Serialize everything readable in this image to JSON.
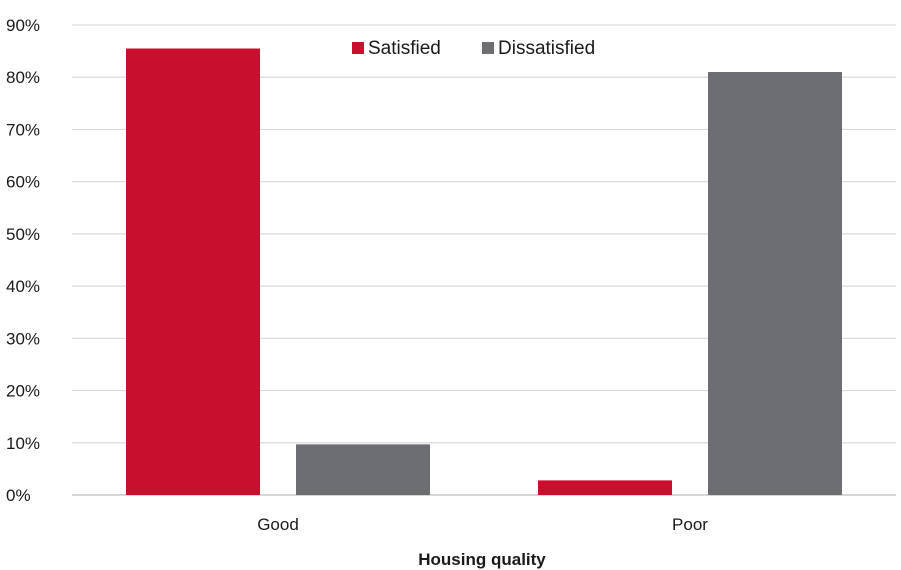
{
  "chart_data": {
    "type": "bar",
    "categories": [
      "Good",
      "Poor"
    ],
    "series": [
      {
        "name": "Satisfied",
        "values": [
          85.5,
          2.8
        ],
        "color": "#c8102e"
      },
      {
        "name": "Dissatisfied",
        "values": [
          9.7,
          81
        ],
        "color": "#6d6e71"
      }
    ],
    "xlabel": "Housing quality",
    "ylabel": "",
    "ylim": [
      0,
      90
    ],
    "yticks": [
      "0%",
      "10%",
      "20%",
      "30%",
      "40%",
      "50%",
      "60%",
      "70%",
      "80%",
      "90%"
    ],
    "grid": true,
    "legend_position": "top-center"
  }
}
